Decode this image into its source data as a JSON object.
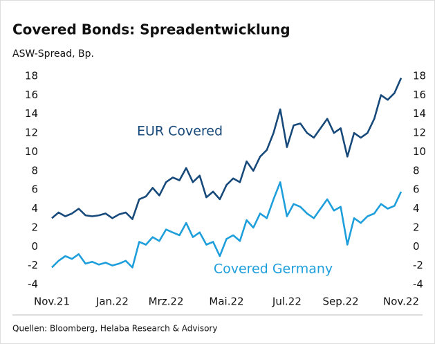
{
  "chart_data": {
    "type": "line",
    "title": "Covered Bonds: Spreadentwicklung",
    "subtitle": "ASW-Spread, Bp.",
    "source": "Quellen: Bloomberg, Helaba Research & Advisory",
    "categories": [
      "Nov.21",
      null,
      null,
      null,
      null,
      null,
      null,
      null,
      null,
      "Jan.22",
      null,
      null,
      null,
      null,
      null,
      null,
      null,
      "Mrz.22",
      null,
      null,
      null,
      null,
      null,
      null,
      null,
      null,
      "Mai.22",
      null,
      null,
      null,
      null,
      null,
      null,
      null,
      null,
      "Jul.22",
      null,
      null,
      null,
      null,
      null,
      null,
      null,
      "Sep.22",
      null,
      null,
      null,
      null,
      null,
      null,
      null,
      null,
      "Nov.22"
    ],
    "series": [
      {
        "name": "EUR Covered",
        "color": "#17497a",
        "values": [
          3.0,
          3.6,
          3.2,
          3.5,
          4.0,
          3.3,
          3.2,
          3.3,
          3.5,
          3.0,
          3.4,
          3.6,
          2.9,
          5.0,
          5.3,
          6.2,
          5.4,
          6.8,
          7.3,
          7.0,
          8.3,
          6.8,
          7.5,
          5.2,
          5.8,
          5.0,
          6.5,
          7.2,
          6.8,
          9.0,
          8.0,
          9.5,
          10.2,
          12.0,
          14.5,
          10.5,
          12.8,
          13.0,
          12.0,
          11.5,
          12.5,
          13.5,
          12.0,
          12.5,
          9.5,
          12.0,
          11.5,
          12.0,
          13.5,
          16.0,
          15.5,
          16.2,
          17.8
        ]
      },
      {
        "name": "Covered Germany",
        "color": "#1e9fdc",
        "values": [
          -2.2,
          -1.5,
          -1.0,
          -1.3,
          -0.8,
          -1.8,
          -1.6,
          -1.9,
          -1.7,
          -2.0,
          -1.8,
          -1.5,
          -2.2,
          0.5,
          0.2,
          1.0,
          0.6,
          1.8,
          1.5,
          1.2,
          2.5,
          1.0,
          1.5,
          0.2,
          0.5,
          -1.0,
          0.8,
          1.2,
          0.6,
          2.8,
          2.0,
          3.5,
          3.0,
          5.0,
          6.8,
          3.2,
          4.5,
          4.2,
          3.5,
          3.0,
          4.0,
          5.0,
          3.8,
          4.2,
          0.2,
          3.0,
          2.5,
          3.2,
          3.5,
          4.5,
          4.0,
          4.3,
          5.8
        ]
      }
    ],
    "ylim": [
      -4,
      18
    ],
    "yticks": [
      -4,
      -2,
      0,
      2,
      4,
      6,
      8,
      10,
      12,
      14,
      16,
      18
    ],
    "y2lim": [
      -4,
      18
    ],
    "y2ticks": [
      -4,
      -2,
      0,
      2,
      4,
      6,
      8,
      10,
      12,
      14,
      16,
      18
    ],
    "grid": false
  }
}
